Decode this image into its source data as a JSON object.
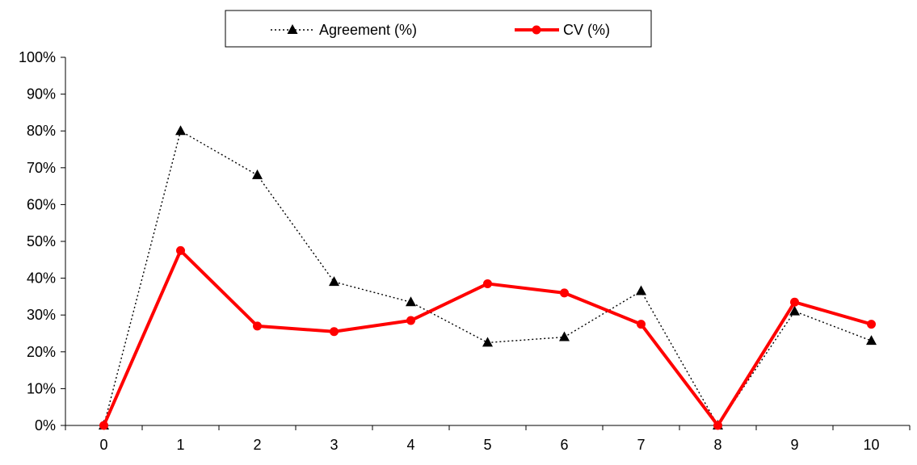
{
  "chart_data": {
    "type": "line",
    "categories": [
      "0",
      "1",
      "2",
      "3",
      "4",
      "5",
      "6",
      "7",
      "8",
      "9",
      "10"
    ],
    "series": [
      {
        "name": "Agreement (%)",
        "values": [
          0,
          80,
          68,
          39,
          33.5,
          22.5,
          24,
          36.5,
          0,
          31,
          23
        ],
        "color": "#000000",
        "line_style": "dotted",
        "marker": "triangle"
      },
      {
        "name": "CV (%)",
        "values": [
          0,
          47.5,
          27,
          25.5,
          28.5,
          38.5,
          36,
          27.5,
          0,
          33.5,
          27.5
        ],
        "color": "#ff0000",
        "line_style": "solid",
        "marker": "circle"
      }
    ],
    "yticks": [
      "0%",
      "10%",
      "20%",
      "30%",
      "40%",
      "50%",
      "60%",
      "70%",
      "80%",
      "90%",
      "100%"
    ],
    "ylim": [
      0,
      100
    ],
    "title": "",
    "xlabel": "",
    "ylabel": "",
    "grid": false,
    "legend_position": "top-center"
  }
}
